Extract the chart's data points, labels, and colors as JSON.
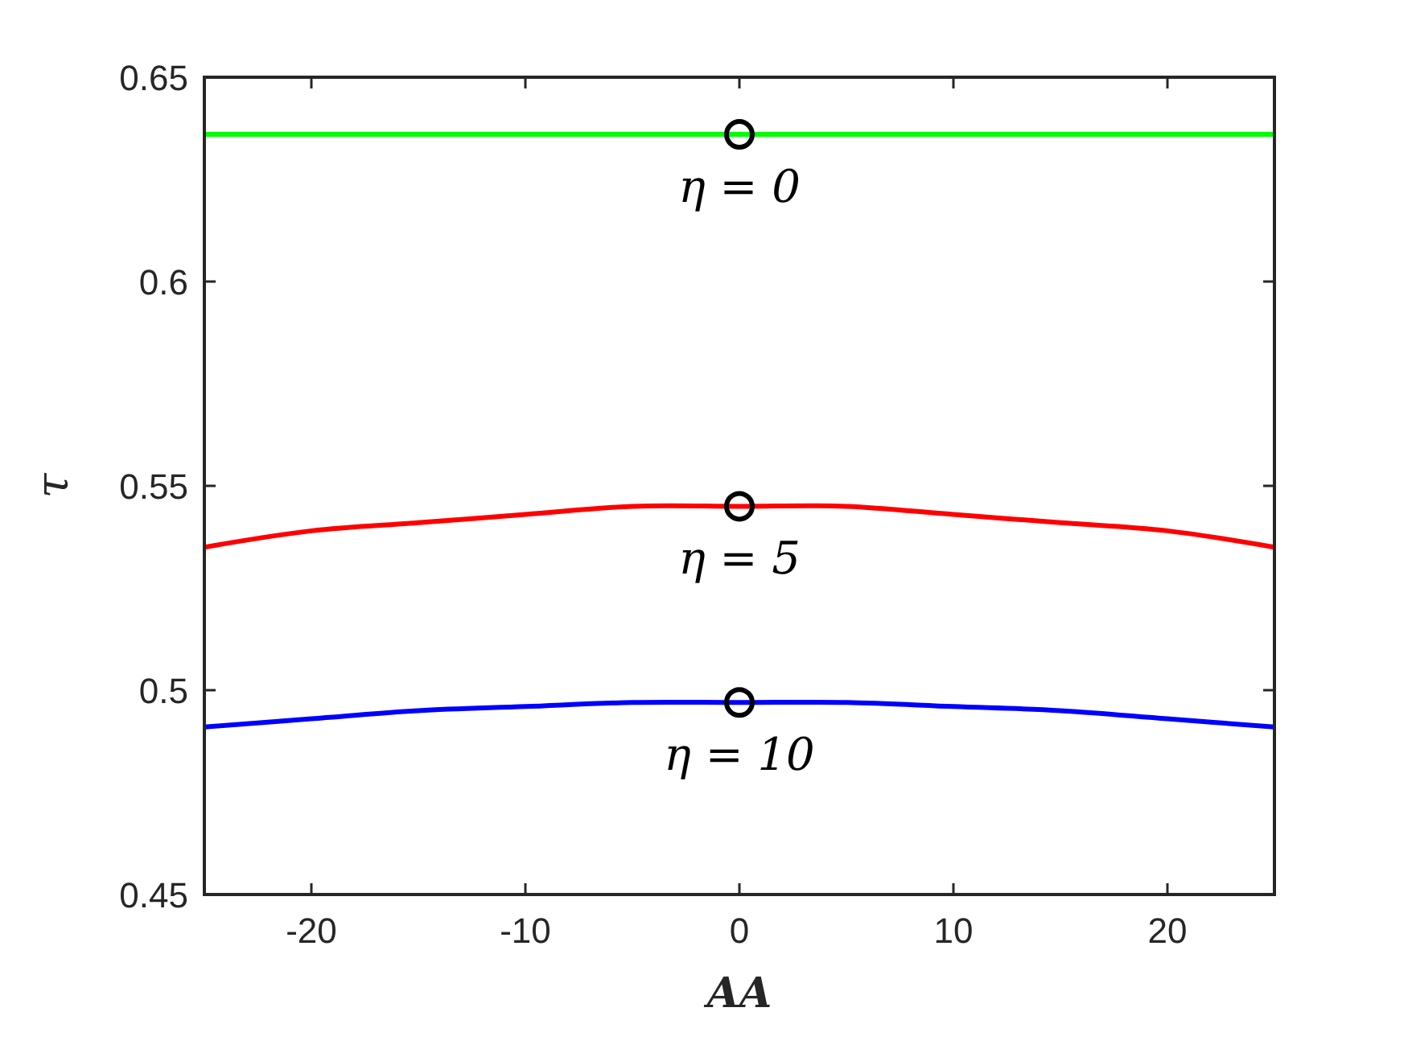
{
  "chart_data": {
    "type": "line",
    "xlabel": "AA",
    "ylabel": "τ",
    "xlim": [
      -25,
      25
    ],
    "xticks": [
      -20,
      -10,
      0,
      10,
      20
    ],
    "ylim": [
      0.45,
      0.65
    ],
    "yticks": [
      0.45,
      0.5,
      0.55,
      0.6,
      0.65
    ],
    "grid": false,
    "line_style": "solid",
    "series": [
      {
        "color": "#00ff00",
        "x": [
          -25,
          -20,
          -15,
          -10,
          -5,
          0,
          5,
          10,
          15,
          20,
          25
        ],
        "values": [
          0.636,
          0.636,
          0.636,
          0.636,
          0.636,
          0.636,
          0.636,
          0.636,
          0.636,
          0.636,
          0.636
        ]
      },
      {
        "color": "#ff0000",
        "x": [
          -25,
          -20,
          -15,
          -10,
          -5,
          0,
          5,
          10,
          15,
          20,
          25
        ],
        "values": [
          0.535,
          0.539,
          0.541,
          0.543,
          0.545,
          0.545,
          0.545,
          0.543,
          0.541,
          0.539,
          0.535
        ]
      },
      {
        "color": "#0000ff",
        "x": [
          -25,
          -20,
          -15,
          -10,
          -5,
          0,
          5,
          10,
          15,
          20,
          25
        ],
        "values": [
          0.491,
          0.493,
          0.495,
          0.496,
          0.497,
          0.497,
          0.497,
          0.496,
          0.495,
          0.493,
          0.491
        ]
      },
      {
        "type": "scatter",
        "color": "#000000",
        "marker": "circle",
        "x": [
          0,
          0,
          0
        ],
        "values": [
          0.636,
          0.545,
          0.497
        ]
      }
    ],
    "annotations": [
      "η = 0",
      "η = 5",
      "η = 10"
    ]
  }
}
